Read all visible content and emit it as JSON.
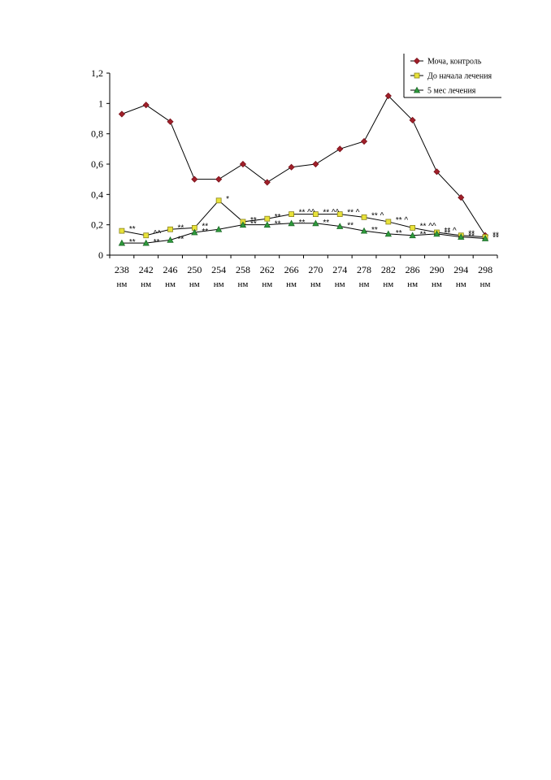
{
  "chart_data": {
    "type": "line",
    "categories": [
      "238",
      "242",
      "246",
      "250",
      "254",
      "258",
      "262",
      "266",
      "270",
      "274",
      "278",
      "282",
      "286",
      "290",
      "294",
      "298"
    ],
    "category_unit": "нм",
    "ylim": [
      0,
      1.2
    ],
    "yticks": [
      "0",
      "0,2",
      "0,4",
      "0,6",
      "0,8",
      "1",
      "1,2"
    ],
    "grid": false,
    "legend_position": "top-right",
    "series": [
      {
        "name": "Моча, контроль",
        "color": "#a0202a",
        "marker": "diamond",
        "values": [
          0.93,
          0.99,
          0.88,
          0.5,
          0.5,
          0.6,
          0.48,
          0.58,
          0.6,
          0.7,
          0.75,
          1.05,
          0.89,
          0.55,
          0.38,
          0.13
        ],
        "annotations": [
          "",
          "",
          "",
          "",
          "",
          "",
          "",
          "",
          "",
          "",
          "",
          "",
          "",
          "",
          "",
          ""
        ]
      },
      {
        "name": "До начала лечения",
        "color": "#e8e23a",
        "marker": "square",
        "values": [
          0.16,
          0.13,
          0.17,
          0.18,
          0.36,
          0.22,
          0.24,
          0.27,
          0.27,
          0.27,
          0.25,
          0.22,
          0.18,
          0.15,
          0.13,
          0.12
        ],
        "annotations": [
          "**",
          "^^",
          "**",
          "**",
          "*",
          "**",
          "**",
          "** ^^",
          "** ^^",
          "** ^",
          "** ^",
          "** ^",
          "** ^^",
          "** ^",
          "**",
          "**"
        ]
      },
      {
        "name": "5 мес лечения",
        "color": "#2e9a3c",
        "marker": "triangle",
        "values": [
          0.08,
          0.08,
          0.1,
          0.15,
          0.17,
          0.2,
          0.2,
          0.21,
          0.21,
          0.19,
          0.16,
          0.14,
          0.13,
          0.14,
          0.12,
          0.11
        ],
        "annotations": [
          "**",
          "**",
          "**",
          "**",
          "",
          "**",
          "**",
          "**",
          "**",
          "**",
          "**",
          "**",
          "**",
          "**",
          "**",
          "**"
        ]
      }
    ]
  }
}
